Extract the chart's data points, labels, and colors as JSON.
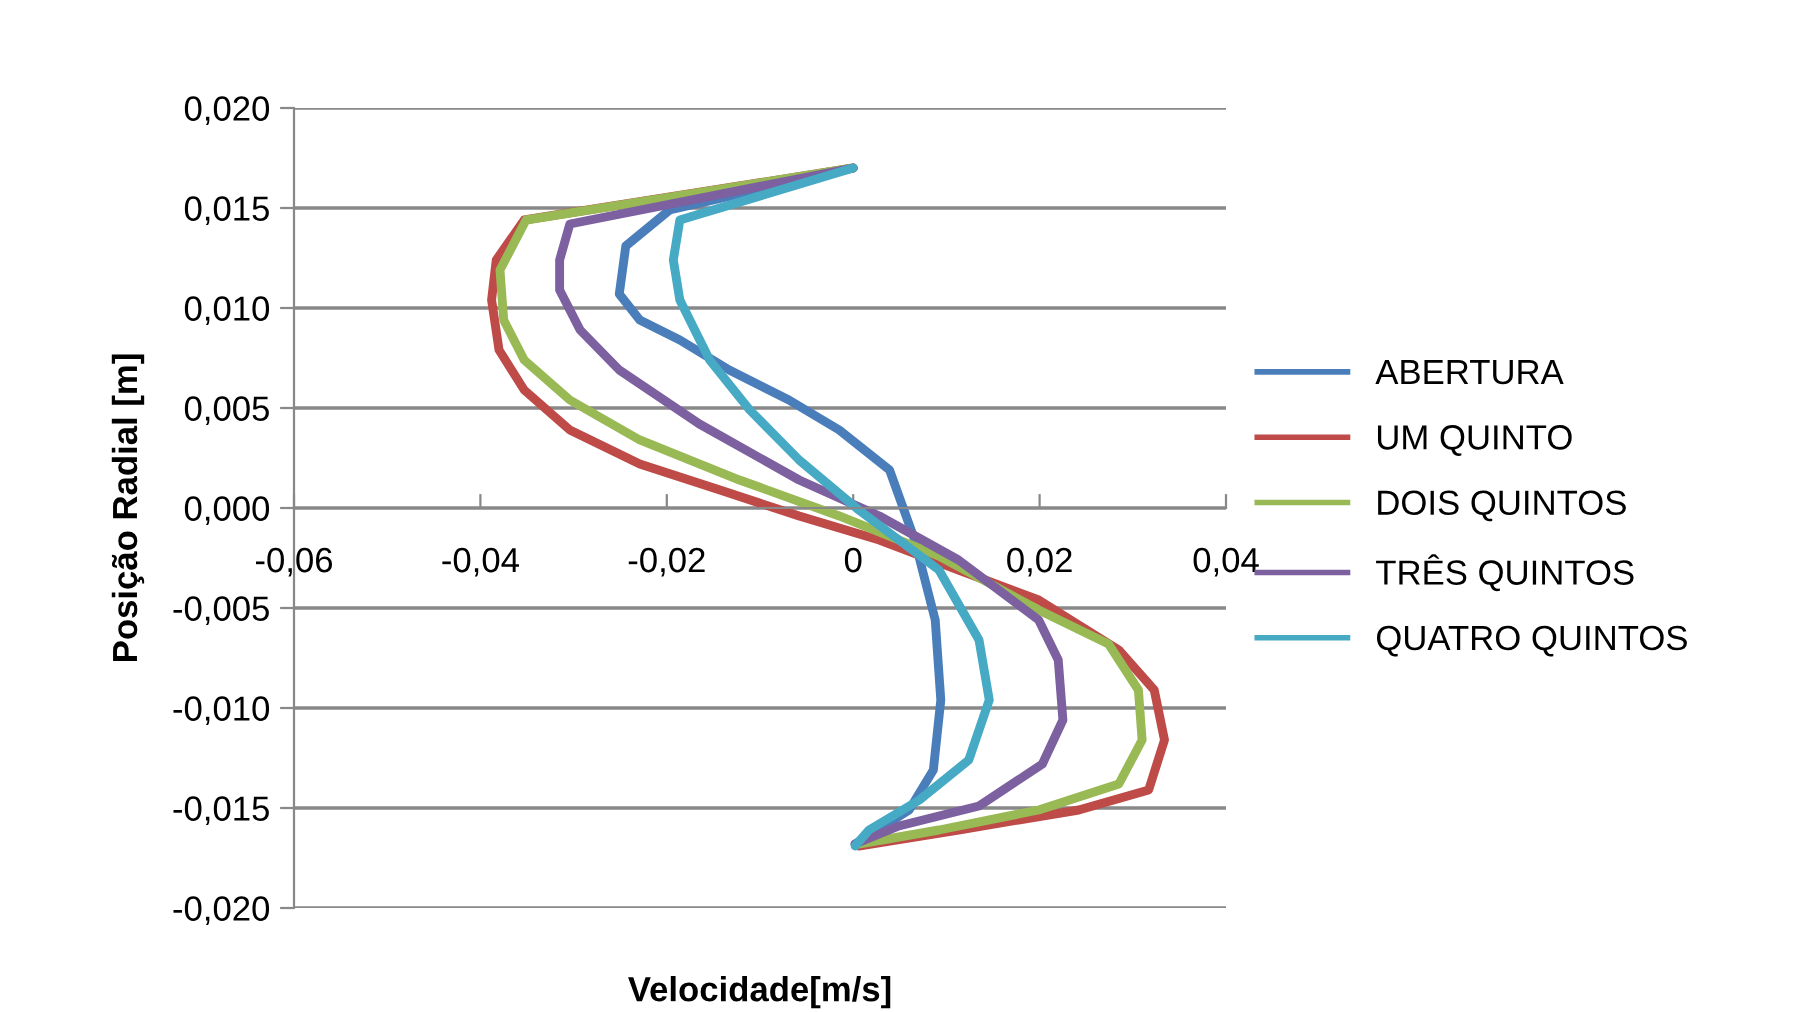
{
  "chart_data": {
    "type": "line",
    "xlabel": "Velocidade[m/s]",
    "ylabel": "Posição Radial [m]",
    "xlim": [
      -0.06,
      0.04
    ],
    "xticks": [
      {
        "value": -0.06,
        "label": "-0,06"
      },
      {
        "value": -0.04,
        "label": "-0,04"
      },
      {
        "value": -0.02,
        "label": "-0,02"
      },
      {
        "value": 0,
        "label": "0"
      },
      {
        "value": 0.02,
        "label": "0,02"
      },
      {
        "value": 0.04,
        "label": "0,04"
      }
    ],
    "ylim": [
      -0.02,
      0.02
    ],
    "yticks": [
      {
        "value": -0.02,
        "label": "-0,020"
      },
      {
        "value": -0.015,
        "label": "-0,015"
      },
      {
        "value": -0.01,
        "label": "-0,010"
      },
      {
        "value": -0.005,
        "label": "-0,005"
      },
      {
        "value": 0,
        "label": "0,000"
      },
      {
        "value": 0.005,
        "label": "0,005"
      },
      {
        "value": 0.01,
        "label": "0,010"
      },
      {
        "value": 0.015,
        "label": "0,015"
      },
      {
        "value": 0.02,
        "label": "0,020"
      }
    ],
    "grid": "y",
    "legend": "right",
    "marker": "none",
    "line_style": "solid",
    "series": [
      {
        "name": "ABERTURA",
        "color": "#4a7ebb",
        "x": [
          0,
          -0.0197,
          -0.0244,
          -0.0251,
          -0.0229,
          -0.0186,
          -0.0133,
          -0.0069,
          -0.0015,
          0.0039,
          0.0066,
          0.0088,
          0.0094,
          0.0086,
          0.006,
          0.0002
        ],
        "values": [
          0.017,
          0.0149,
          0.0131,
          0.0107,
          0.0094,
          0.0084,
          0.0069,
          0.0054,
          0.0039,
          0.0019,
          -0.0016,
          -0.0056,
          -0.0096,
          -0.0131,
          -0.0151,
          -0.0168
        ]
      },
      {
        "name": "UM QUINTO",
        "color": "#be4b48",
        "x": [
          0,
          -0.0353,
          -0.0383,
          -0.0388,
          -0.038,
          -0.0353,
          -0.0304,
          -0.0229,
          -0.0143,
          -0.0058,
          0.0028,
          0.0113,
          0.0199,
          0.0285,
          0.0323,
          0.0334,
          0.0317,
          0.0242,
          0.0113,
          0.0006
        ],
        "values": [
          0.017,
          0.0144,
          0.0124,
          0.0104,
          0.0079,
          0.0059,
          0.0039,
          0.0022,
          0.0009,
          -0.0004,
          -0.0016,
          -0.0031,
          -0.0046,
          -0.0071,
          -0.0091,
          -0.0116,
          -0.0141,
          -0.0151,
          -0.0161,
          -0.0169
        ]
      },
      {
        "name": "DOIS QUINTOS",
        "color": "#98b954",
        "x": [
          0,
          -0.0351,
          -0.0379,
          -0.0375,
          -0.0353,
          -0.0304,
          -0.0229,
          -0.0122,
          -0.0015,
          0.0092,
          0.0199,
          0.0274,
          0.0306,
          0.031,
          0.0285,
          0.0199,
          0.0092,
          0.0006
        ],
        "values": [
          0.017,
          0.0144,
          0.0119,
          0.0094,
          0.0074,
          0.0054,
          0.0034,
          0.0014,
          -0.0004,
          -0.0024,
          -0.0051,
          -0.0068,
          -0.0091,
          -0.0116,
          -0.0138,
          -0.0151,
          -0.0161,
          -0.0168
        ]
      },
      {
        "name": "TRÊS QUINTOS",
        "color": "#7d60a0",
        "x": [
          0,
          -0.0304,
          -0.0315,
          -0.0315,
          -0.0293,
          -0.0251,
          -0.0165,
          -0.0058,
          0.0028,
          0.0113,
          0.0199,
          0.022,
          0.0225,
          0.0203,
          0.0135,
          0.0049,
          0.0002
        ],
        "values": [
          0.017,
          0.0142,
          0.0124,
          0.0109,
          0.0089,
          0.0069,
          0.0042,
          0.0014,
          -0.0004,
          -0.0026,
          -0.0056,
          -0.0076,
          -0.0106,
          -0.0128,
          -0.0149,
          -0.0159,
          -0.0168
        ]
      },
      {
        "name": "QUATRO QUINTOS",
        "color": "#46aac5",
        "x": [
          0,
          -0.0186,
          -0.0193,
          -0.0186,
          -0.0154,
          -0.0111,
          -0.0058,
          0.0006,
          0.0092,
          0.0135,
          0.0146,
          0.0124,
          0.0071,
          0.0017,
          0.0002
        ],
        "values": [
          0.017,
          0.0144,
          0.0124,
          0.0104,
          0.0074,
          0.0049,
          0.0024,
          -0.0001,
          -0.0031,
          -0.0066,
          -0.0096,
          -0.0126,
          -0.0146,
          -0.0161,
          -0.0169
        ]
      }
    ]
  }
}
